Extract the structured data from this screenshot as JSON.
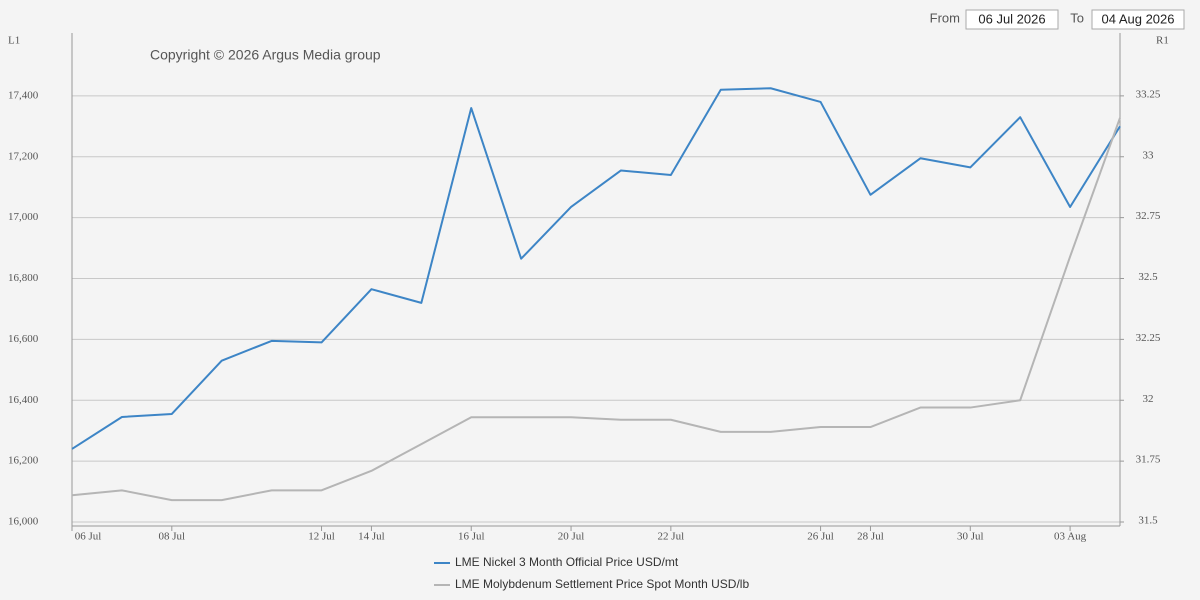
{
  "header": {
    "from_label": "From",
    "from_date": "06 Jul 2026",
    "to_label": "To",
    "to_date": "04 Aug 2026"
  },
  "chart_data": {
    "type": "line",
    "copyright": "Copyright © 2026 Argus Media group",
    "left_axis_label": "L1",
    "right_axis_label": "R1",
    "categories": [
      "06 Jul",
      null,
      "08 Jul",
      null,
      null,
      "12 Jul",
      "14 Jul",
      null,
      "16 Jul",
      null,
      "20 Jul",
      null,
      "22 Jul",
      null,
      null,
      "26 Jul",
      "28 Jul",
      null,
      "30 Jul",
      null,
      "03 Aug",
      null
    ],
    "series": [
      {
        "name": "LME Nickel 3 Month Official Price USD/mt",
        "color": "#3d85c6",
        "values": [
          16240,
          16345,
          16355,
          16530,
          16595,
          16590,
          16765,
          16720,
          17360,
          16865,
          17035,
          17155,
          17140,
          17420,
          17425,
          17380,
          17075,
          17195,
          17165,
          17330,
          17035,
          17300
        ]
      },
      {
        "name": "LME Molybdenum Settlement Price Spot Month USD/lb",
        "color": "#b5b5b5",
        "axis": "y2",
        "values": [
          31.61,
          31.63,
          31.59,
          31.59,
          31.63,
          31.63,
          31.71,
          31.82,
          31.93,
          31.93,
          31.93,
          31.92,
          31.92,
          31.87,
          31.87,
          31.89,
          31.89,
          31.97,
          31.97,
          32.0,
          32.59,
          33.16
        ]
      }
    ],
    "ylim": [
      16000,
      17600
    ],
    "yticks": [
      {
        "value": 16000,
        "label": "16,000"
      },
      {
        "value": 16200,
        "label": "16,200"
      },
      {
        "value": 16400,
        "label": "16,400"
      },
      {
        "value": 16600,
        "label": "16,600"
      },
      {
        "value": 16800,
        "label": "16,800"
      },
      {
        "value": 17000,
        "label": "17,000"
      },
      {
        "value": 17200,
        "label": "17,200"
      },
      {
        "value": 17400,
        "label": "17,400"
      }
    ],
    "y2lim": [
      31.5,
      33.5
    ],
    "y2ticks": [
      31.5,
      31.75,
      32,
      32.25,
      32.5,
      32.75,
      33,
      33.25
    ],
    "grid": true
  }
}
